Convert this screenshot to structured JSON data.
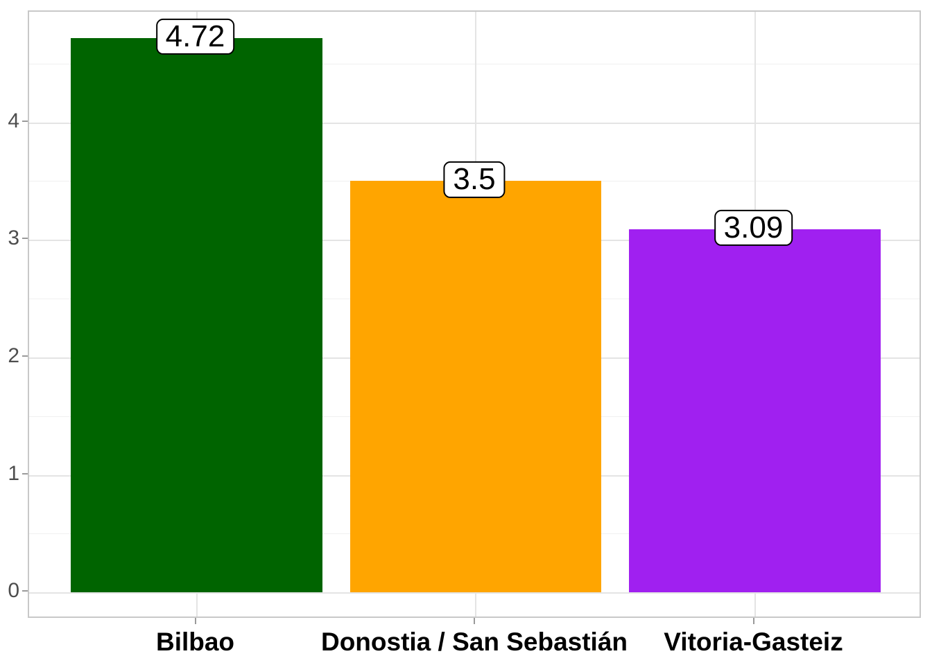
{
  "chart_data": {
    "type": "bar",
    "title": "",
    "xlabel": "",
    "ylabel": "",
    "categories": [
      "Bilbao",
      "Donostia / San Sebastián",
      "Vitoria-Gasteiz"
    ],
    "values": [
      4.72,
      3.5,
      3.09
    ],
    "value_labels": [
      "4.72",
      "3.5",
      "3.09"
    ],
    "bar_colors": [
      "#006400",
      "#FFA500",
      "#A020F0"
    ],
    "ylim": [
      0,
      4.94
    ],
    "y_major_ticks": [
      0,
      1,
      2,
      3,
      4
    ],
    "y_major_tick_labels": [
      "0",
      "1",
      "2",
      "3",
      "4"
    ],
    "y_minor_ticks": [
      0.5,
      1.5,
      2.5,
      3.5,
      4.5
    ],
    "grid": true,
    "legend_position": "none",
    "colors": {
      "grid_major": "#E4E4E4",
      "grid_minor": "#F0F0F0",
      "panel_border": "#C8C8C8",
      "tick_mark": "#9A9A9A",
      "axis_text_y": "#4D4D4D",
      "axis_text_x": "#000000",
      "value_label_border": "#000000",
      "value_label_background": "#FFFFFF",
      "plot_background": "#FFFFFF"
    }
  }
}
